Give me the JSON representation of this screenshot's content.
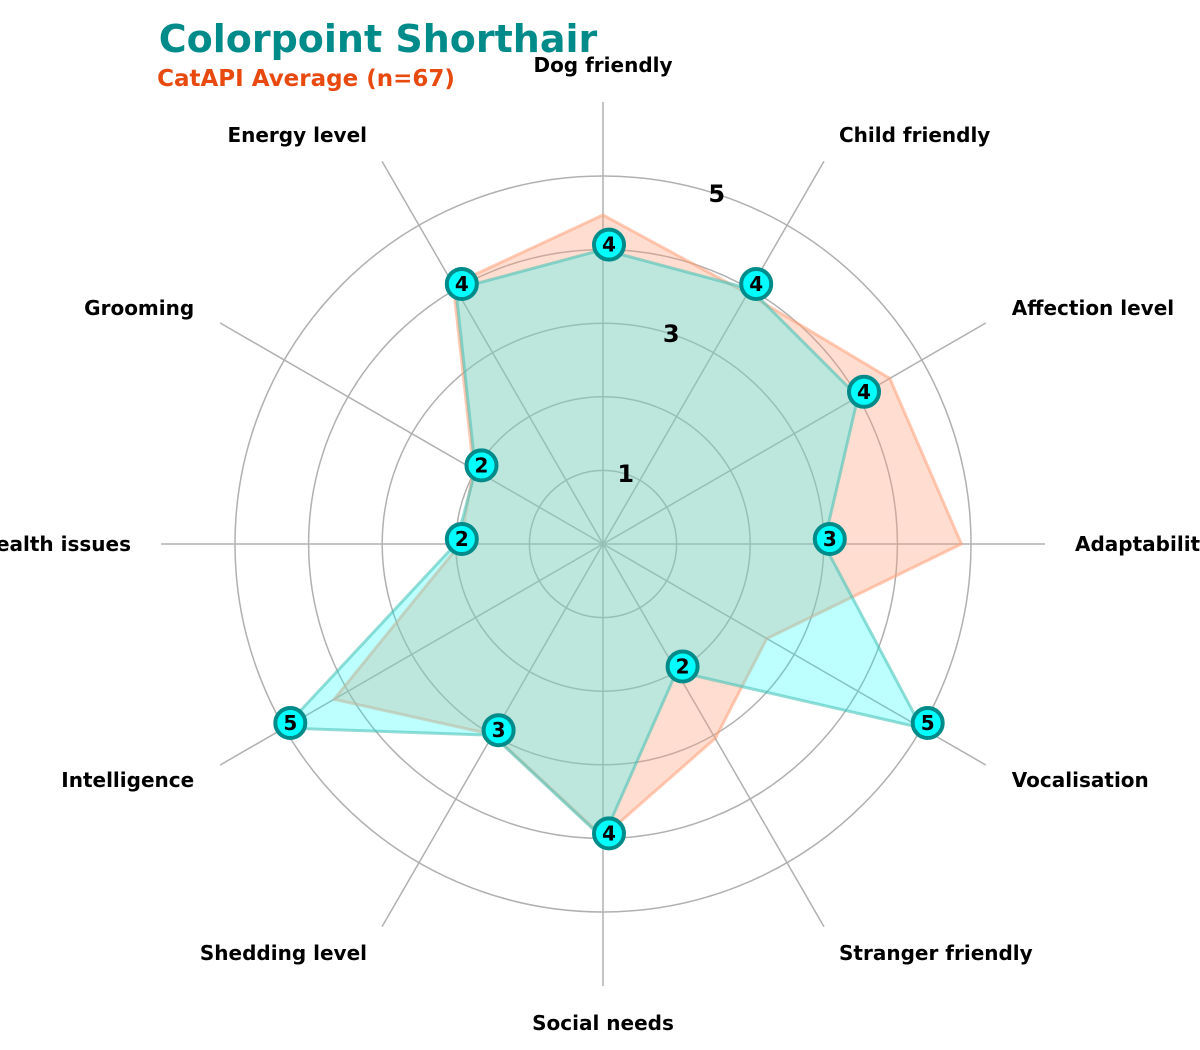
{
  "chart_data": {
    "type": "radar",
    "title": "Colorpoint Shorthair",
    "subtitle": "CatAPI Average (n=67)",
    "axes": [
      "Adaptability",
      "Affection level",
      "Child friendly",
      "Dog friendly",
      "Energy level",
      "Grooming",
      "Health issues",
      "Intelligence",
      "Shedding level",
      "Social needs",
      "Stranger friendly",
      "Vocalisation"
    ],
    "range": [
      0,
      5
    ],
    "ring_labels": [
      "1",
      "3",
      "5"
    ],
    "series": [
      {
        "values": [
          3,
          4,
          4,
          4,
          4,
          2,
          2,
          5,
          3,
          4,
          2,
          5
        ]
      },
      {
        "values": [
          4.87,
          4.5,
          3.93,
          4.47,
          4.07,
          2.03,
          1.94,
          4.22,
          2.99,
          3.98,
          3.05,
          2.57
        ]
      }
    ],
    "grid": true
  },
  "colors": {
    "title": "#008b8b",
    "subtitle": "#e8490f",
    "breed_fill": "#00ffff",
    "breed_edge": "#40bfb4",
    "avg_fill": "#ffa07a",
    "avg_edge": "#ffa07a",
    "marker_fill": "#00ffff",
    "marker_edge": "#008b8b",
    "grid": "#b0b0b0"
  }
}
